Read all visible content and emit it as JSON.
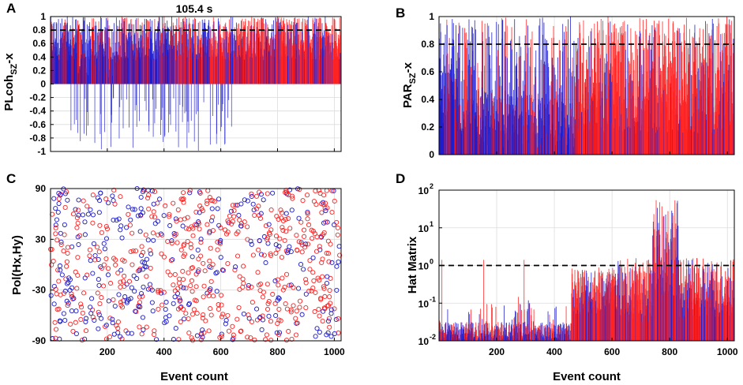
{
  "colors": {
    "red": "#ff2020",
    "blue": "#1a1acc",
    "grid": "#dcdcdc",
    "refline": "#000000"
  },
  "chart_data": [
    {
      "panel": "A",
      "type": "bar",
      "title": "105.4 s",
      "ylabel_main": "PLcoh",
      "ylabel_sub": "SZ",
      "ylabel_suffix": "-x",
      "xlabel": "",
      "xlim": [
        0,
        1024
      ],
      "ylim": [
        -1,
        1
      ],
      "xticks": [
        200,
        400,
        600,
        800,
        1000
      ],
      "yticks": [
        -1,
        -0.8,
        -0.6,
        -0.4,
        -0.2,
        0,
        0.2,
        0.4,
        0.6,
        0.8,
        1
      ],
      "ytick_labels": [
        "-1",
        "-0.8",
        "-0.6",
        "-0.4",
        "-0.2",
        "0",
        "0.2",
        "0.4",
        "0.6",
        "0.8",
        "1"
      ],
      "reference_line": 0.8,
      "series": [
        {
          "name": "events",
          "values": "per-event coherence, 1024 events, mostly 0.3-1.0, sparse negative spikes to -1 (blue) in events 100-620"
        }
      ]
    },
    {
      "panel": "B",
      "type": "bar",
      "ylabel_main": "PAR",
      "ylabel_sub": "SZ",
      "ylabel_suffix": "-x",
      "xlabel": "",
      "xlim": [
        0,
        1024
      ],
      "ylim": [
        0,
        1
      ],
      "xticks": [
        200,
        400,
        600,
        800,
        1000
      ],
      "yticks": [
        0,
        0.2,
        0.4,
        0.6,
        0.8,
        1
      ],
      "ytick_labels": [
        "0",
        "0.2",
        "0.4",
        "0.6",
        "0.8",
        "1"
      ],
      "reference_line": 0.8,
      "series": [
        {
          "name": "events",
          "values": "per-event PAR, blue-dominated events 0-460, red-dominated events 460-1024"
        }
      ]
    },
    {
      "panel": "C",
      "type": "scatter",
      "ylabel_main": "Pol(Hx,Hy)",
      "xlabel": "Event count",
      "xlim": [
        0,
        1024
      ],
      "ylim": [
        -90,
        90
      ],
      "xticks": [
        200,
        400,
        600,
        800,
        1000
      ],
      "yticks": [
        -90,
        -30,
        30,
        90
      ],
      "ytick_labels": [
        "-90",
        "-30",
        "30",
        "90"
      ],
      "series": [
        {
          "name": "events",
          "values": "polarization angle per event, uniformly spread between -90 and 90 degrees, red and blue open circles"
        }
      ]
    },
    {
      "panel": "D",
      "type": "bar",
      "ylabel_main": "Hat Matrix",
      "xlabel": "Event count",
      "xlim": [
        0,
        1024
      ],
      "ylim_log10": [
        -2,
        2
      ],
      "yscale": "log",
      "xticks": [
        200,
        400,
        600,
        800,
        1000
      ],
      "ytick_exponents": [
        -2,
        -1,
        0,
        1,
        2
      ],
      "ytick_base": "10",
      "reference_line": 1,
      "series": [
        {
          "name": "events",
          "values": "hat-matrix diagonal per event, mostly 0.01-0.1, rising to 0.1-1 for events 460-600, peaks near 100 around event 780"
        }
      ]
    }
  ],
  "panel_letters": [
    "A",
    "B",
    "C",
    "D"
  ]
}
